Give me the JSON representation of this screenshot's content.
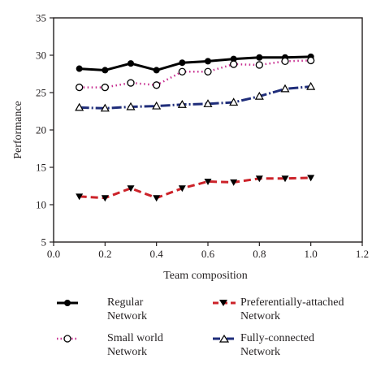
{
  "chart_data": {
    "type": "line",
    "xlabel": "Team composition",
    "ylabel": "Performance",
    "xlim": [
      0.0,
      1.2
    ],
    "ylim": [
      5,
      35
    ],
    "xticks": [
      "0.0",
      "0.2",
      "0.4",
      "0.6",
      "0.8",
      "1.0",
      "1.2"
    ],
    "yticks": [
      "5",
      "10",
      "15",
      "20",
      "25",
      "30",
      "35"
    ],
    "x": [
      0.1,
      0.2,
      0.3,
      0.4,
      0.5,
      0.6,
      0.7,
      0.8,
      0.9,
      1.0
    ],
    "grid": false,
    "legend_position": "bottom",
    "series": [
      {
        "name": "Regular\nNetwork",
        "marker": "filled-circle",
        "line": "solid",
        "color": "#000000",
        "values": [
          28.2,
          28.0,
          28.9,
          28.0,
          29.0,
          29.2,
          29.5,
          29.7,
          29.7,
          29.8
        ]
      },
      {
        "name": "Preferentially-attached\nNetwork",
        "marker": "filled-triangle-down",
        "line": "dashed",
        "color": "#cc2229",
        "values": [
          11.1,
          10.9,
          12.2,
          10.9,
          12.2,
          13.1,
          13.0,
          13.5,
          13.5,
          13.6
        ]
      },
      {
        "name": "Small world\nNetwork",
        "marker": "open-circle",
        "line": "dotted",
        "color": "#c72c8f",
        "values": [
          25.7,
          25.7,
          26.3,
          26.0,
          27.8,
          27.8,
          28.8,
          28.7,
          29.2,
          29.3
        ]
      },
      {
        "name": "Fully-connected\nNetwork",
        "marker": "open-triangle-up",
        "line": "dashdot",
        "color": "#1f2d7a",
        "values": [
          23.0,
          22.9,
          23.1,
          23.2,
          23.4,
          23.5,
          23.7,
          24.5,
          25.5,
          25.8
        ]
      }
    ]
  }
}
